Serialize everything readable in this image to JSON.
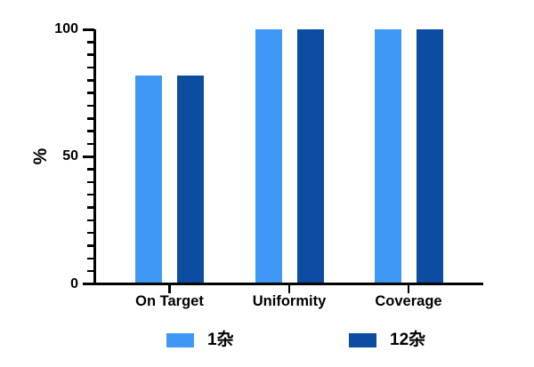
{
  "figure": {
    "background": "#ffffff",
    "axis_color": "#000000",
    "text_color": "#000000"
  },
  "chart_data": {
    "type": "bar",
    "title": "",
    "xlabel": "",
    "ylabel": "%",
    "categories": [
      "On Target",
      "Uniformity",
      "Coverage"
    ],
    "series": [
      {
        "name": "1杂",
        "color": "#3F98F6",
        "values": [
          82,
          100,
          100
        ]
      },
      {
        "name": "12杂",
        "color": "#0C4DA2",
        "values": [
          82,
          100,
          100
        ]
      }
    ],
    "ylim": [
      0,
      100
    ],
    "yticks_major": [
      0,
      50,
      100
    ],
    "ytick_minor_step": 5,
    "grid": false,
    "legend_position": "bottom"
  }
}
